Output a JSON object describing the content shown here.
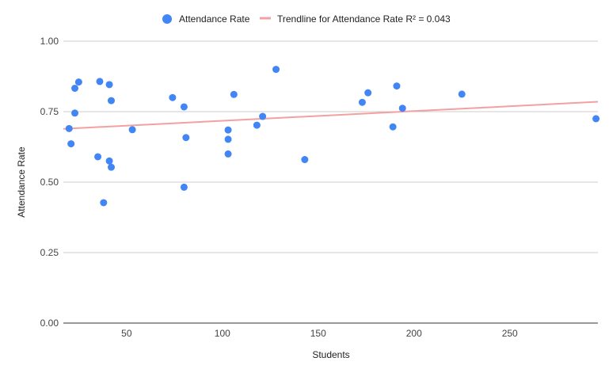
{
  "chart_data": {
    "type": "scatter",
    "xlabel": "Students",
    "ylabel": "Attendance Rate",
    "xlim": [
      17,
      296
    ],
    "ylim": [
      0,
      1
    ],
    "xticks": [
      50,
      100,
      150,
      200,
      250
    ],
    "yticks": [
      0,
      0.25,
      0.5,
      0.75,
      1
    ],
    "ytick_labels": [
      "0.00",
      "0.25",
      "0.50",
      "0.75",
      "1.00"
    ],
    "grid": true,
    "legend_position": "top",
    "series": [
      {
        "name": "Attendance Rate",
        "color": "#4285f4",
        "points": [
          {
            "x": 20,
            "y": 0.69
          },
          {
            "x": 21,
            "y": 0.636
          },
          {
            "x": 23,
            "y": 0.833
          },
          {
            "x": 23,
            "y": 0.745
          },
          {
            "x": 25,
            "y": 0.855
          },
          {
            "x": 35,
            "y": 0.59
          },
          {
            "x": 36,
            "y": 0.857
          },
          {
            "x": 38,
            "y": 0.427
          },
          {
            "x": 41,
            "y": 0.846
          },
          {
            "x": 41,
            "y": 0.575
          },
          {
            "x": 42,
            "y": 0.789
          },
          {
            "x": 42,
            "y": 0.553
          },
          {
            "x": 53,
            "y": 0.686
          },
          {
            "x": 74,
            "y": 0.8
          },
          {
            "x": 80,
            "y": 0.767
          },
          {
            "x": 80,
            "y": 0.482
          },
          {
            "x": 81,
            "y": 0.658
          },
          {
            "x": 103,
            "y": 0.685
          },
          {
            "x": 103,
            "y": 0.652
          },
          {
            "x": 103,
            "y": 0.6
          },
          {
            "x": 106,
            "y": 0.811
          },
          {
            "x": 118,
            "y": 0.702
          },
          {
            "x": 121,
            "y": 0.733
          },
          {
            "x": 128,
            "y": 0.9
          },
          {
            "x": 143,
            "y": 0.58
          },
          {
            "x": 173,
            "y": 0.783
          },
          {
            "x": 176,
            "y": 0.817
          },
          {
            "x": 189,
            "y": 0.696
          },
          {
            "x": 191,
            "y": 0.841
          },
          {
            "x": 194,
            "y": 0.762
          },
          {
            "x": 225,
            "y": 0.812
          },
          {
            "x": 295,
            "y": 0.725
          }
        ]
      },
      {
        "name": "Trendline for Attendance Rate R² = 0.043",
        "type": "trendline",
        "color": "#f4a0a0",
        "points": [
          {
            "x": 17,
            "y": 0.689
          },
          {
            "x": 296,
            "y": 0.785
          }
        ]
      }
    ]
  }
}
